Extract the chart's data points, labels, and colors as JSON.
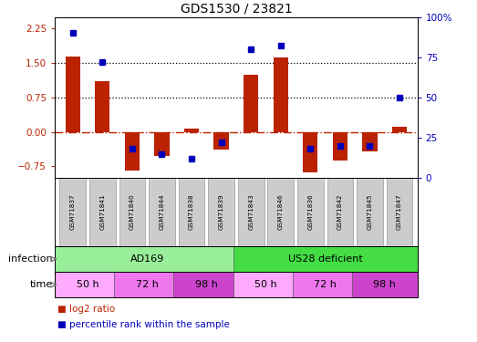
{
  "title": "GDS1530 / 23821",
  "samples": [
    "GSM71837",
    "GSM71841",
    "GSM71840",
    "GSM71844",
    "GSM71838",
    "GSM71839",
    "GSM71843",
    "GSM71846",
    "GSM71836",
    "GSM71842",
    "GSM71845",
    "GSM71847"
  ],
  "log2_ratio": [
    1.65,
    1.1,
    -0.85,
    -0.52,
    0.07,
    -0.38,
    1.25,
    1.62,
    -0.88,
    -0.62,
    -0.42,
    0.12
  ],
  "percentile_rank": [
    90,
    72,
    18,
    15,
    12,
    22,
    80,
    82,
    18,
    20,
    20,
    50
  ],
  "infection_groups": [
    {
      "label": "AD169",
      "start": 0,
      "end": 6,
      "color": "#99EE99"
    },
    {
      "label": "US28 deficient",
      "start": 6,
      "end": 12,
      "color": "#44DD44"
    }
  ],
  "time_groups": [
    {
      "label": "50 h",
      "start": 0,
      "end": 2,
      "color": "#FFAAFF"
    },
    {
      "label": "72 h",
      "start": 2,
      "end": 4,
      "color": "#EE77EE"
    },
    {
      "label": "98 h",
      "start": 4,
      "end": 6,
      "color": "#CC44CC"
    },
    {
      "label": "50 h",
      "start": 6,
      "end": 8,
      "color": "#FFAAFF"
    },
    {
      "label": "72 h",
      "start": 8,
      "end": 10,
      "color": "#EE77EE"
    },
    {
      "label": "98 h",
      "start": 10,
      "end": 12,
      "color": "#CC44CC"
    }
  ],
  "bar_color": "#BB2200",
  "dot_color": "#0000BB",
  "ylim_left": [
    -1.0,
    2.5
  ],
  "ylim_right": [
    0,
    100
  ],
  "yticks_left": [
    -0.75,
    0,
    0.75,
    1.5,
    2.25
  ],
  "yticks_right": [
    0,
    25,
    50,
    75,
    100
  ],
  "hlines": [
    0.75,
    1.5
  ],
  "legend_items": [
    "log2 ratio",
    "percentile rank within the sample"
  ],
  "background_color": "#ffffff",
  "gsm_box_color": "#CCCCCC",
  "gsm_box_edge": "#999999",
  "bar_width": 0.5
}
